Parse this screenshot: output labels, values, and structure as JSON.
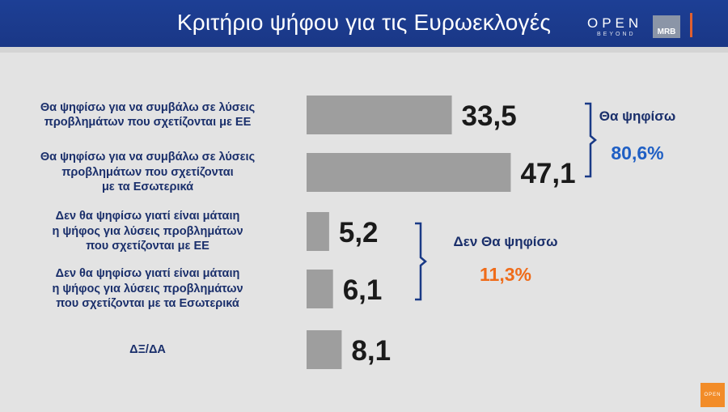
{
  "header": {
    "title": "Κριτήριο ψήφου για τις Ευρωεκλογές",
    "logo_open": "OPEN",
    "logo_open_sub": "BEYOND",
    "logo_mrb": "MRB"
  },
  "chart_data": {
    "type": "bar",
    "orientation": "horizontal",
    "categories": [
      "Θα ψηφίσω για να συμβάλω σε λύσεις προβλημάτων που σχετίζονται με ΕΕ",
      "Θα ψηφίσω για να συμβάλω σε λύσεις προβλημάτων που σχετίζονται με τα Εσωτερικά",
      "Δεν θα ψηφίσω γιατί είναι μάταιη η ψήφος  για λύσεις προβλημάτων που σχετίζονται με ΕΕ",
      "Δεν θα ψηφίσω γιατί είναι μάταιη η ψήφος  για λύσεις προβλημάτων που σχετίζονται με τα Εσωτερικά",
      "ΔΞ/ΔΑ"
    ],
    "category_lines": [
      [
        "Θα ψηφίσω για να συμβάλω σε λύσεις",
        "προβλημάτων που σχετίζονται με ΕΕ"
      ],
      [
        "Θα ψηφίσω για να συμβάλω σε λύσεις",
        "προβλημάτων που σχετίζονται",
        "με τα Εσωτερικά"
      ],
      [
        "Δεν θα ψηφίσω γιατί είναι μάταιη",
        "η ψήφος  για λύσεις προβλημάτων",
        "που σχετίζονται με ΕΕ"
      ],
      [
        "Δεν θα ψηφίσω γιατί είναι μάταιη",
        "η ψήφος  για λύσεις προβλημάτων",
        "που σχετίζονται με τα Εσωτερικά"
      ],
      [
        "ΔΞ/ΔΑ"
      ]
    ],
    "values": [
      33.5,
      47.1,
      5.2,
      6.1,
      8.1
    ],
    "value_labels": [
      "33,5",
      "47,1",
      "5,2",
      "6,1",
      "8,1"
    ],
    "bar_color": "#9e9e9e",
    "label_color": "#1a2f6b",
    "groups": [
      {
        "label": "Θα ψηφίσω",
        "total": "80,6%",
        "color": "#1f5fc4",
        "rows": [
          0,
          1
        ]
      },
      {
        "label": "Δεν Θα ψηφίσω",
        "total": "11,3%",
        "color": "#ef6c1a",
        "rows": [
          2,
          3
        ]
      }
    ]
  }
}
